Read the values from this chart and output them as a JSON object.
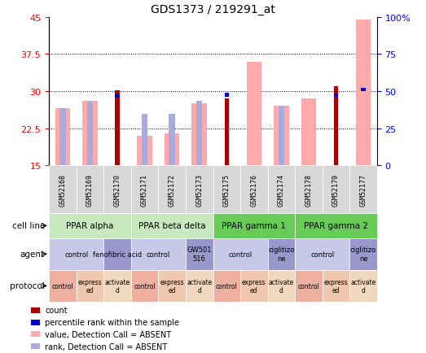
{
  "title": "GDS1373 / 219291_at",
  "samples": [
    "GSM52168",
    "GSM52169",
    "GSM52170",
    "GSM52171",
    "GSM52172",
    "GSM52173",
    "GSM52175",
    "GSM52176",
    "GSM52174",
    "GSM52178",
    "GSM52179",
    "GSM52177"
  ],
  "count_values": [
    0,
    0,
    30.2,
    0,
    0,
    0,
    28.5,
    0,
    0,
    0,
    31.0,
    0
  ],
  "percentile_values": [
    0,
    0,
    28.7,
    0,
    0,
    0,
    28.9,
    0,
    0,
    0,
    28.8,
    30.0
  ],
  "value_absent": [
    26.5,
    28.0,
    0,
    21.0,
    21.5,
    27.5,
    0,
    36.0,
    27.0,
    28.5,
    0,
    44.5
  ],
  "rank_absent": [
    26.5,
    28.0,
    0,
    25.5,
    25.5,
    28.0,
    0,
    0,
    27.0,
    0,
    0,
    0
  ],
  "ylim_left": [
    15,
    45
  ],
  "ylim_right": [
    0,
    100
  ],
  "yticks_left": [
    15,
    22.5,
    30,
    37.5,
    45
  ],
  "yticks_right": [
    0,
    25,
    50,
    75,
    100
  ],
  "cell_lines": [
    {
      "label": "PPAR alpha",
      "start": 0,
      "end": 3,
      "color": "#c8e8c0"
    },
    {
      "label": "PPAR beta delta",
      "start": 3,
      "end": 6,
      "color": "#c8e8c0"
    },
    {
      "label": "PPAR gamma 1",
      "start": 6,
      "end": 9,
      "color": "#66cc55"
    },
    {
      "label": "PPAR gamma 2",
      "start": 9,
      "end": 12,
      "color": "#66cc55"
    }
  ],
  "agents": [
    {
      "label": "control",
      "start": 0,
      "end": 2,
      "color": "#c8c8e8"
    },
    {
      "label": "fenofibric acid",
      "start": 2,
      "end": 3,
      "color": "#9898cc"
    },
    {
      "label": "control",
      "start": 3,
      "end": 5,
      "color": "#c8c8e8"
    },
    {
      "label": "GW501\n516",
      "start": 5,
      "end": 6,
      "color": "#9898cc"
    },
    {
      "label": "control",
      "start": 6,
      "end": 8,
      "color": "#c8c8e8"
    },
    {
      "label": "ciglitizo\nne",
      "start": 8,
      "end": 9,
      "color": "#9898cc"
    },
    {
      "label": "control",
      "start": 9,
      "end": 11,
      "color": "#c8c8e8"
    },
    {
      "label": "ciglitizo\nne",
      "start": 11,
      "end": 12,
      "color": "#9898cc"
    }
  ],
  "protocols": [
    {
      "label": "control",
      "start": 0,
      "end": 1,
      "color": "#f0b0a0"
    },
    {
      "label": "express\ned",
      "start": 1,
      "end": 2,
      "color": "#f0c8b0"
    },
    {
      "label": "activate\nd",
      "start": 2,
      "end": 3,
      "color": "#f0d8c0"
    },
    {
      "label": "control",
      "start": 3,
      "end": 4,
      "color": "#f0b0a0"
    },
    {
      "label": "express\ned",
      "start": 4,
      "end": 5,
      "color": "#f0c8b0"
    },
    {
      "label": "activate\nd",
      "start": 5,
      "end": 6,
      "color": "#f0d8c0"
    },
    {
      "label": "control",
      "start": 6,
      "end": 7,
      "color": "#f0b0a0"
    },
    {
      "label": "express\ned",
      "start": 7,
      "end": 8,
      "color": "#f0c8b0"
    },
    {
      "label": "activate\nd",
      "start": 8,
      "end": 9,
      "color": "#f0d8c0"
    },
    {
      "label": "control",
      "start": 9,
      "end": 10,
      "color": "#f0b0a0"
    },
    {
      "label": "express\ned",
      "start": 10,
      "end": 11,
      "color": "#f0c8b0"
    },
    {
      "label": "activate\nd",
      "start": 11,
      "end": 12,
      "color": "#f0d8c0"
    }
  ],
  "color_count": "#aa0000",
  "color_percentile": "#0000cc",
  "color_value_absent": "#ffaaaa",
  "color_rank_absent": "#aaaadd",
  "bar_width": 0.55,
  "label_fontsize": 7,
  "row_labels": [
    "cell line",
    "agent",
    "protocol"
  ],
  "legend_items": [
    {
      "label": "count",
      "color": "#aa0000"
    },
    {
      "label": "percentile rank within the sample",
      "color": "#0000cc"
    },
    {
      "label": "value, Detection Call = ABSENT",
      "color": "#ffaaaa"
    },
    {
      "label": "rank, Detection Call = ABSENT",
      "color": "#aaaadd"
    }
  ],
  "sample_box_color": "#d8d8d8",
  "fig_width": 5.23,
  "fig_height": 4.35,
  "dpi": 100
}
